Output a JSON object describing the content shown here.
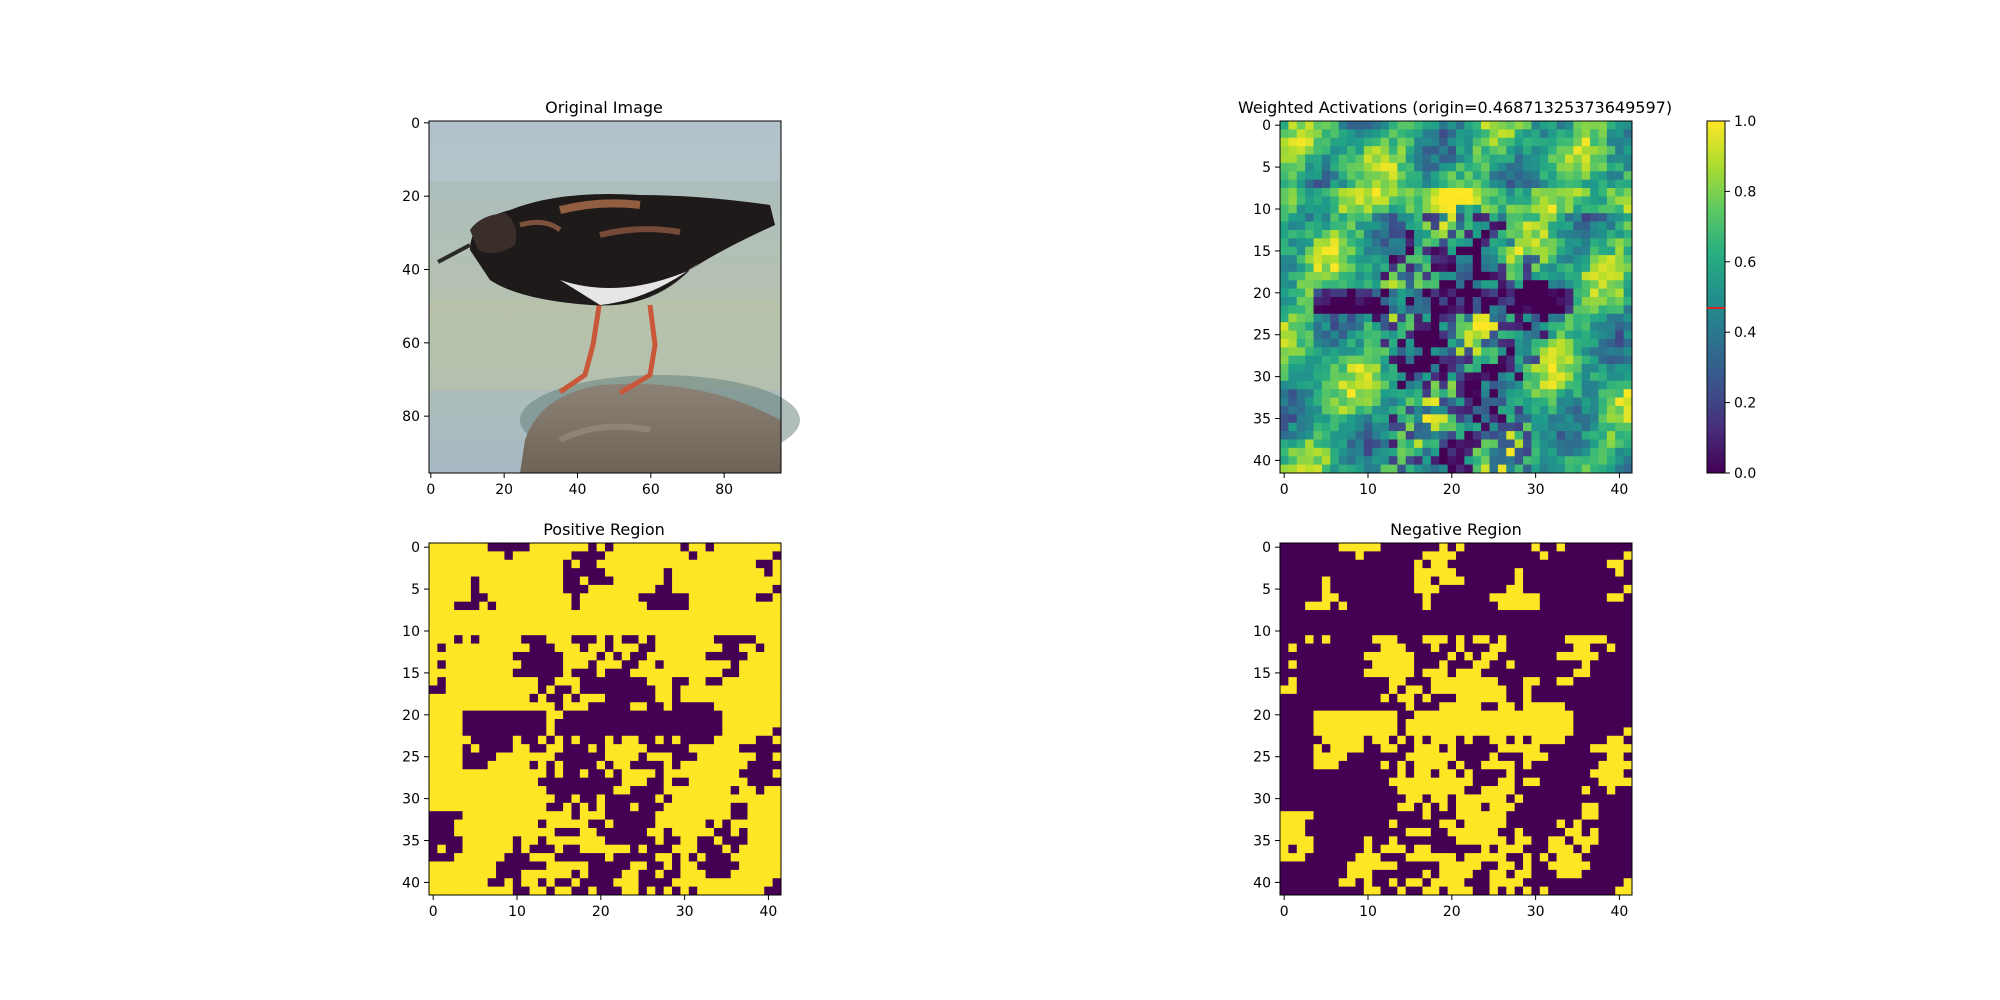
{
  "figure": {
    "background": "#ffffff"
  },
  "chart_data": [
    {
      "type": "image",
      "title": "Original Image",
      "xticks": [
        "0",
        "20",
        "40",
        "60",
        "80"
      ],
      "yticks": [
        "0",
        "20",
        "40",
        "60",
        "80"
      ],
      "xlim": [
        0,
        96
      ],
      "ylim": [
        96,
        0
      ],
      "image_content": "photo of a shorebird (ruddy turnstone) standing on a rock in shallow water"
    },
    {
      "type": "heatmap",
      "title": "Weighted Activations (origin=0.46871325373649597)",
      "origin_value": 0.46871325373649597,
      "grid_size": [
        42,
        42
      ],
      "xticks": [
        "0",
        "10",
        "20",
        "30",
        "40"
      ],
      "yticks": [
        "0",
        "5",
        "10",
        "15",
        "20",
        "25",
        "30",
        "35",
        "40"
      ],
      "colorbar": {
        "ticks": [
          "0.0",
          "0.2",
          "0.4",
          "0.6",
          "0.8",
          "1.0"
        ],
        "range": [
          0,
          1
        ],
        "marker_value": 0.4687,
        "marker_color": "#d62728"
      },
      "colormap": "viridis"
    },
    {
      "type": "heatmap",
      "title": "Positive Region",
      "grid_size": [
        42,
        42
      ],
      "xticks": [
        "0",
        "10",
        "20",
        "30",
        "40"
      ],
      "yticks": [
        "0",
        "5",
        "10",
        "15",
        "20",
        "25",
        "30",
        "35",
        "40"
      ],
      "binary_colors": {
        "true": "#fde725",
        "false": "#440154"
      }
    },
    {
      "type": "heatmap",
      "title": "Negative Region",
      "grid_size": [
        42,
        42
      ],
      "xticks": [
        "0",
        "10",
        "20",
        "30",
        "40"
      ],
      "yticks": [
        "0",
        "5",
        "10",
        "15",
        "20",
        "25",
        "30",
        "35",
        "40"
      ],
      "binary_colors": {
        "true": "#fde725",
        "false": "#440154"
      }
    }
  ]
}
